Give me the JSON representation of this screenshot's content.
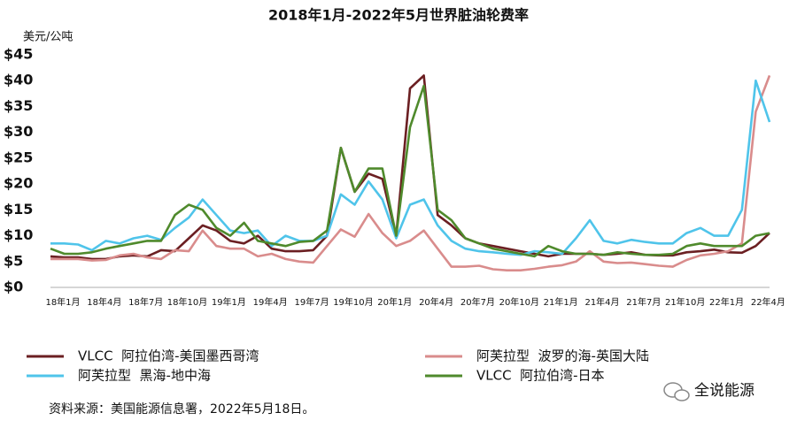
{
  "chart_data": {
    "type": "line",
    "title": "2018年1月-2022年5月世界脏油轮费率",
    "y_label": "美元/公吨",
    "categories": [
      "18年1月",
      null,
      null,
      "18年4月",
      null,
      null,
      "18年7月",
      null,
      null,
      "18年10月",
      null,
      null,
      "19年1月",
      null,
      null,
      "19年4月",
      null,
      null,
      "19年7月",
      null,
      null,
      "19年10月",
      null,
      null,
      "20年1月",
      null,
      null,
      "20年4月",
      null,
      null,
      "20年7月",
      null,
      null,
      "20年10月",
      null,
      null,
      "21年1月",
      null,
      null,
      "21年4月",
      null,
      null,
      "21年7月",
      null,
      null,
      "21年10月",
      null,
      null,
      "22年1月",
      null,
      null,
      "22年4月",
      null
    ],
    "series": [
      {
        "name": "VLCC  阿拉伯湾-美国墨西哥湾",
        "color": "#6b1f22",
        "values": [
          6,
          5.8,
          5.8,
          5.5,
          5.5,
          6,
          6.2,
          6,
          7.2,
          7,
          9.5,
          12,
          11,
          9,
          8.5,
          10,
          7.5,
          7,
          7,
          7.2,
          10,
          27,
          18.5,
          22,
          21,
          10,
          38.5,
          41,
          14,
          12,
          9.5,
          8.5,
          8,
          7.5,
          7,
          6.5,
          6,
          6.5,
          6.5,
          6.5,
          6.3,
          6.5,
          6.8,
          6.3,
          6.2,
          6.2,
          6.8,
          7,
          7.3,
          6.8,
          6.7,
          8,
          10.5
        ]
      },
      {
        "name": "阿芙拉型  波罗的海-英国大陆",
        "color": "#d98c8c",
        "values": [
          5.5,
          5.5,
          5.5,
          5.2,
          5.3,
          6.2,
          6.5,
          5.8,
          5.5,
          7.2,
          7,
          11,
          8,
          7.5,
          7.5,
          6,
          6.5,
          5.5,
          5,
          4.8,
          8,
          11.2,
          9.8,
          14.2,
          10.5,
          8,
          9,
          11,
          7.5,
          4,
          4,
          4.2,
          3.5,
          3.3,
          3.3,
          3.6,
          4,
          4.3,
          5,
          7,
          5,
          4.7,
          4.8,
          4.5,
          4.2,
          4,
          5.3,
          6.2,
          6.5,
          7,
          8.5,
          34,
          41
        ]
      },
      {
        "name": "阿芙拉型  黑海-地中海",
        "color": "#4fc4ea",
        "values": [
          8.5,
          8.5,
          8.3,
          7.2,
          9,
          8.5,
          9.5,
          10,
          9.2,
          11.5,
          13.5,
          17,
          14,
          11,
          10.5,
          11,
          8,
          10,
          9,
          9,
          10,
          18,
          16,
          20.5,
          17,
          9.5,
          16,
          17,
          12,
          9,
          7.5,
          7,
          6.8,
          6.5,
          6.3,
          7,
          6.8,
          6.5,
          9.5,
          13,
          9,
          8.5,
          9.2,
          8.8,
          8.5,
          8.5,
          10.5,
          11.5,
          10,
          10,
          15,
          40,
          32
        ]
      },
      {
        "name": "VLCC  阿拉伯湾-日本",
        "color": "#4f8a2c",
        "values": [
          7.5,
          6.5,
          6.5,
          6.8,
          7.5,
          8,
          8.5,
          9,
          9,
          14,
          16,
          15,
          11.5,
          10,
          12.5,
          9,
          8.5,
          8,
          8.8,
          9,
          11,
          27,
          18.5,
          23,
          23,
          10,
          31,
          39,
          15,
          13,
          9.5,
          8.5,
          7.5,
          7,
          6.5,
          6,
          8,
          7,
          6.5,
          6.5,
          6.3,
          6.8,
          6.5,
          6.3,
          6.3,
          6.5,
          8,
          8.5,
          8,
          8,
          8,
          10,
          10.5
        ]
      }
    ],
    "ylim": [
      0,
      45
    ],
    "yticks": [
      {
        "value": 0,
        "label": "$0"
      },
      {
        "value": 5,
        "label": "$5"
      },
      {
        "value": 10,
        "label": "$10"
      },
      {
        "value": 15,
        "label": "$15"
      },
      {
        "value": 20,
        "label": "$20"
      },
      {
        "value": 25,
        "label": "$25"
      },
      {
        "value": 30,
        "label": "$30"
      },
      {
        "value": 35,
        "label": "$35"
      },
      {
        "value": 40,
        "label": "$40"
      },
      {
        "value": 45,
        "label": "$45"
      }
    ],
    "grid": false,
    "source": "资料来源：美国能源信息署，2022年5月18日。",
    "watermark": "全说能源"
  }
}
